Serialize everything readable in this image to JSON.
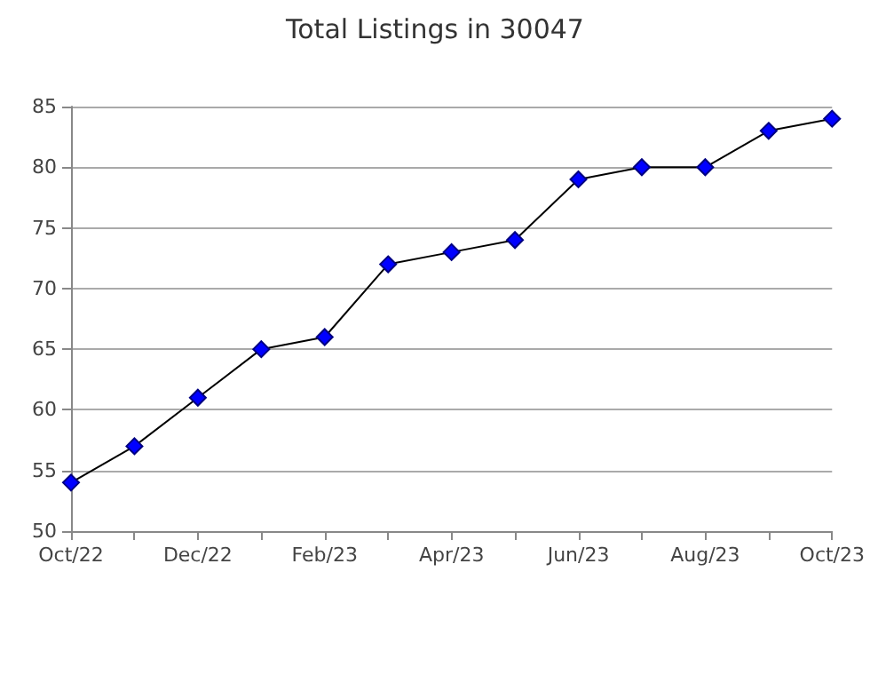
{
  "chart_data": {
    "type": "line",
    "title": "Total Listings in 30047",
    "categories": [
      "Oct/22",
      null,
      "Dec/22",
      null,
      "Feb/23",
      null,
      "Apr/23",
      null,
      "Jun/23",
      null,
      "Aug/23",
      null,
      "Oct/23"
    ],
    "series": [
      {
        "color": "#0000ff",
        "values": [
          54,
          57,
          61,
          65,
          66,
          72,
          73,
          74,
          79,
          80,
          80,
          83,
          84
        ]
      }
    ],
    "ylim": [
      50,
      85
    ],
    "yticks": [
      50,
      55,
      60,
      65,
      70,
      75,
      80,
      85
    ],
    "grid": "y",
    "marker": "diamond",
    "line_style": "solid"
  }
}
